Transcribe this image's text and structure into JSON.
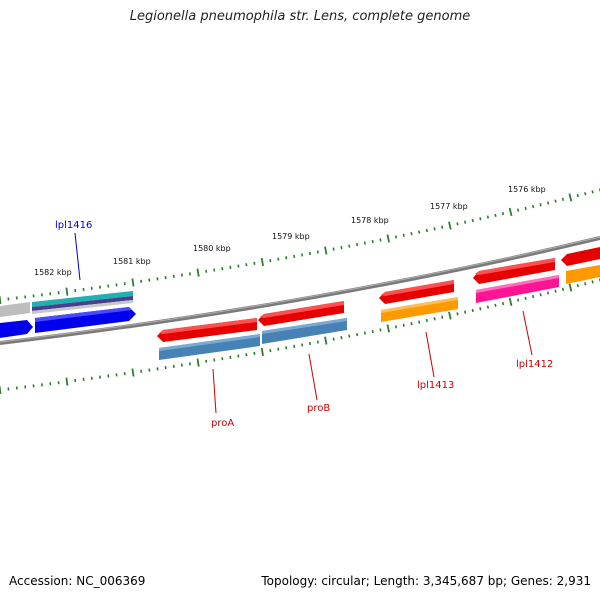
{
  "title": "Legionella pneumophila str. Lens, complete genome",
  "footer": {
    "accession": "Accession: NC_006369",
    "summary": "Topology: circular; Length: 3,345,687 bp; Genes: 2,931"
  },
  "colors": {
    "backbone": "#808080",
    "tick": "#2e7d2e",
    "gene_red": "#e60000",
    "steel_blue": "#4682b4",
    "orange": "#ff9900",
    "magenta": "#ff1493",
    "blue": "#0000ee",
    "cyan": "#20b2aa",
    "purple": "#483d8b",
    "gray": "#c0c0c0",
    "label_red": "#cc0000",
    "label_blue": "#0000cc"
  },
  "scale_labels": [
    "1576 kbp",
    "1577 kbp",
    "1578 kbp",
    "1579 kbp",
    "1580 kbp",
    "1581 kbp",
    "1582 kbp"
  ],
  "gene_labels": {
    "lpl1416": "lpl1416",
    "proA": "proA",
    "proB": "proB",
    "lpl1413": "lpl1413",
    "lpl1412": "lpl1412"
  }
}
